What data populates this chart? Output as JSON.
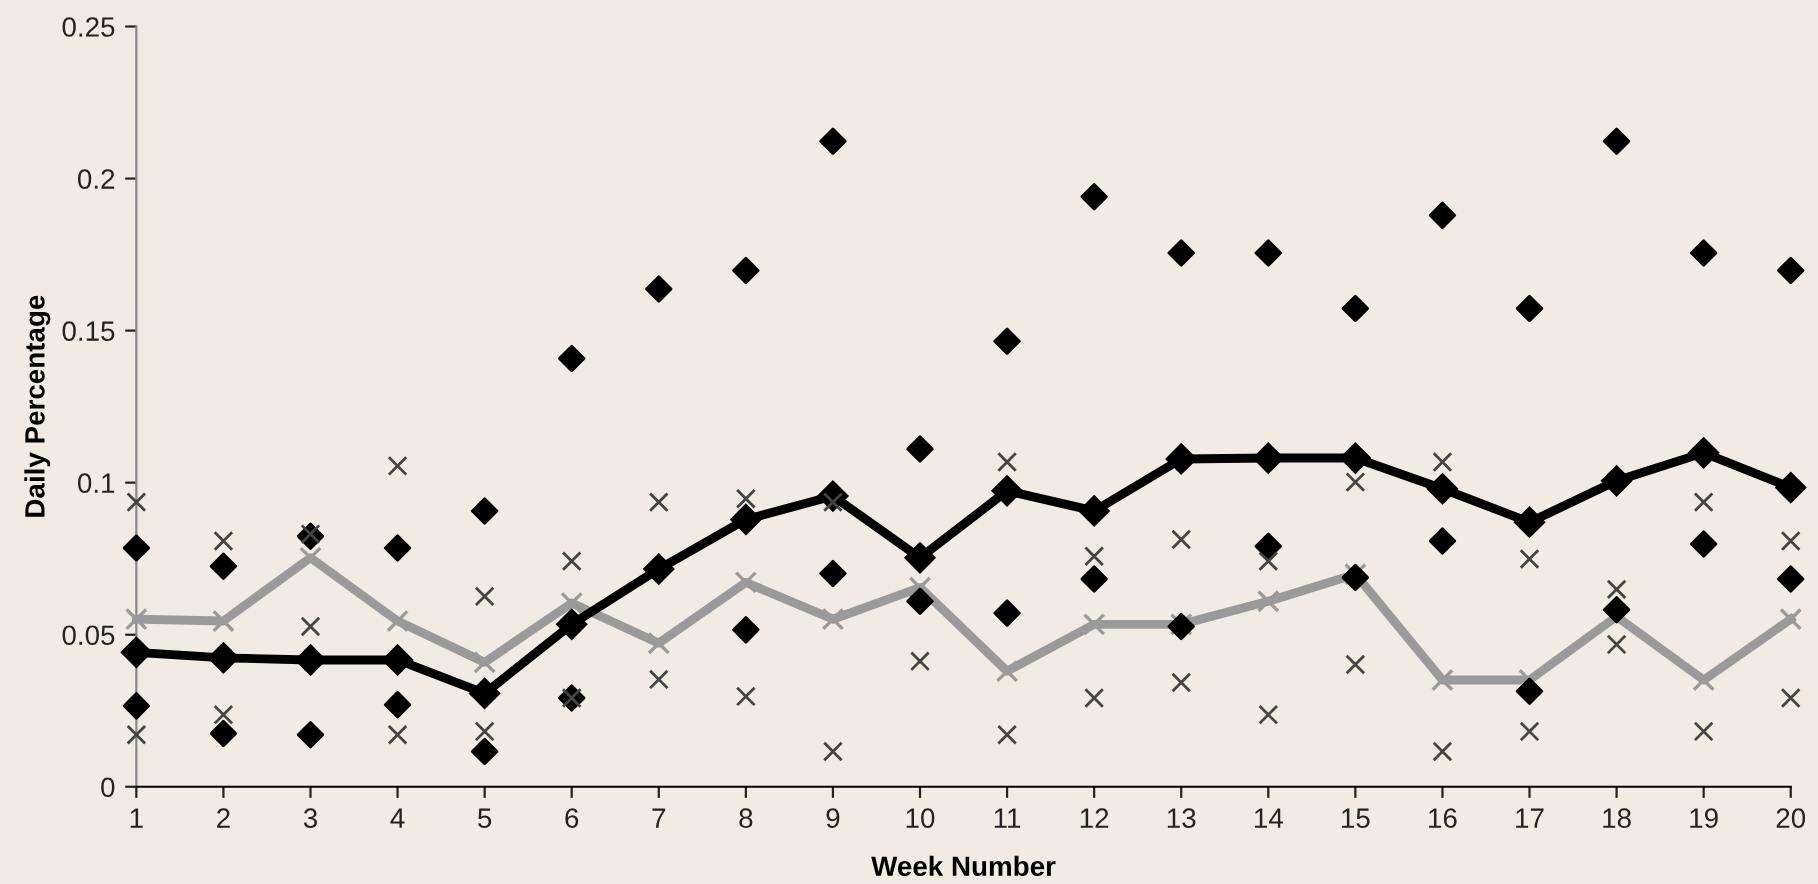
{
  "chart_data": {
    "type": "line",
    "xlabel": "Week Number",
    "ylabel": "Daily Percentage",
    "categories": [
      "1",
      "2",
      "3",
      "4",
      "5",
      "6",
      "7",
      "8",
      "9",
      "10",
      "11",
      "12",
      "13",
      "14",
      "15",
      "16",
      "17",
      "18",
      "19",
      "20"
    ],
    "ylim": [
      0,
      0.25
    ],
    "yticks": [
      0,
      0.05,
      0.1,
      0.15,
      0.2,
      0.25
    ],
    "grid": false,
    "legend": false,
    "line_style": "solid",
    "series": [
      {
        "type": "scatter",
        "marker": "diamond",
        "color": "#000000",
        "values": [
          0.0785,
          0.0725,
          0.0824,
          0.0785,
          0.0907,
          0.1408,
          0.1637,
          0.1698,
          0.2123,
          0.1111,
          0.1465,
          0.194,
          0.1755,
          0.1755,
          0.1573,
          0.1879,
          0.1573,
          0.2123,
          0.1755,
          0.1698
        ]
      },
      {
        "type": "scatter",
        "marker": "diamond",
        "color": "#000000",
        "values": [
          0.0266,
          0.0175,
          0.0171,
          0.027,
          0.0116,
          0.0292,
          null,
          0.0516,
          0.0701,
          0.061,
          0.0571,
          0.0683,
          0.0527,
          0.0791,
          0.0688,
          0.0808,
          0.0314,
          0.0582,
          0.0798,
          0.0683
        ]
      },
      {
        "type": "scatter",
        "marker": "cross",
        "color": "#444444",
        "values": [
          0.0936,
          0.0808,
          0.0831,
          0.1055,
          0.0626,
          0.0742,
          0.0936,
          0.0947,
          0.0936,
          null,
          0.1068,
          0.0758,
          0.0813,
          0.0742,
          0.1002,
          0.1068,
          0.0749,
          0.0649,
          0.0936,
          0.0808
        ]
      },
      {
        "type": "scatter",
        "marker": "cross",
        "color": "#444444",
        "values": [
          0.0171,
          0.0237,
          0.0527,
          0.0171,
          0.0182,
          0.0292,
          0.0353,
          0.0297,
          0.0116,
          0.0413,
          0.0171,
          0.0292,
          0.0343,
          0.0237,
          0.0402,
          0.0116,
          0.0182,
          0.0468,
          0.0182,
          0.0292
        ]
      },
      {
        "marker": "cross",
        "color": "#9a9a9a",
        "values": [
          0.0551,
          0.0545,
          0.0753,
          0.0545,
          0.0409,
          0.0604,
          0.0472,
          0.0672,
          0.0551,
          0.0655,
          0.038,
          0.0534,
          0.0534,
          0.061,
          0.0699,
          0.0351,
          0.0351,
          0.056,
          0.0351,
          0.0551
        ]
      },
      {
        "marker": "diamond",
        "color": "#000000",
        "values": [
          0.0442,
          0.0424,
          0.0417,
          0.0417,
          0.0307,
          0.0534,
          0.0716,
          0.0879,
          0.0956,
          0.0753,
          0.0973,
          0.0907,
          0.1078,
          0.1081,
          0.1081,
          0.098,
          0.087,
          0.1006,
          0.1098,
          0.0984
        ]
      }
    ]
  }
}
